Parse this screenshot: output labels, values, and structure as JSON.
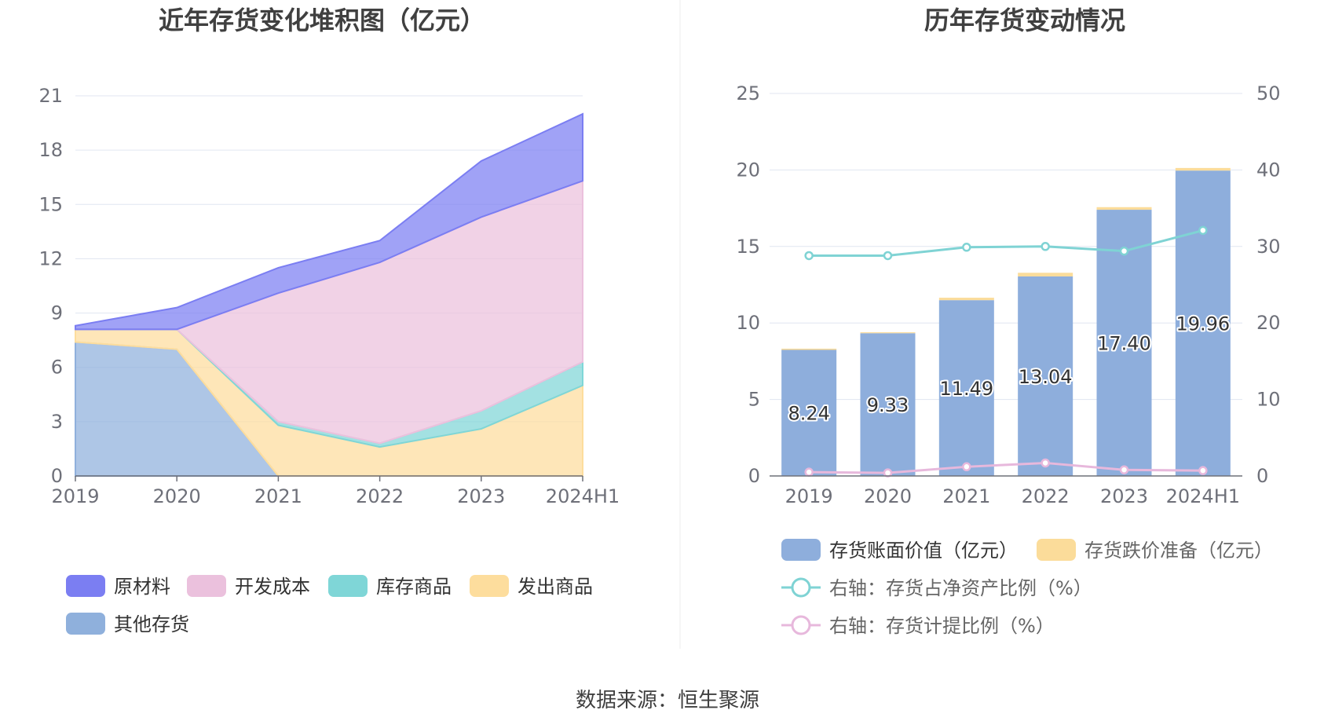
{
  "footer": {
    "source": "数据来源：恒生聚源"
  },
  "chart_data": [
    {
      "type": "area",
      "stacked": true,
      "title": "近年存货变化堆积图（亿元）",
      "categories": [
        "2019",
        "2020",
        "2021",
        "2022",
        "2023",
        "2024H1"
      ],
      "y_ticks": [
        "0",
        "3",
        "6",
        "9",
        "12",
        "15",
        "18",
        "21"
      ],
      "ylim": [
        0,
        21
      ],
      "grid": true,
      "legend_position": "bottom",
      "series": [
        {
          "name": "其他存货",
          "color": "#8fb0dc",
          "values": [
            7.4,
            7.0,
            0.0,
            0.0,
            0.0,
            0.0
          ]
        },
        {
          "name": "发出商品",
          "color": "#fddd9d",
          "values": [
            0.7,
            1.1,
            2.8,
            1.6,
            2.6,
            5.0
          ]
        },
        {
          "name": "库存商品",
          "color": "#7fd6d7",
          "values": [
            0.0,
            0.0,
            0.2,
            0.2,
            1.0,
            1.3
          ]
        },
        {
          "name": "开发成本",
          "color": "#ebc1dd",
          "values": [
            0.0,
            0.0,
            7.1,
            10.0,
            10.7,
            10.0
          ]
        },
        {
          "name": "原材料",
          "color": "#7b7ef2",
          "values": [
            0.2,
            1.2,
            1.4,
            1.2,
            3.1,
            3.7
          ]
        }
      ],
      "legend_order": [
        "原材料",
        "开发成本",
        "库存商品",
        "发出商品",
        "其他存货"
      ]
    },
    {
      "type": "bar+line",
      "title": "历年存货变动情况",
      "categories": [
        "2019",
        "2020",
        "2021",
        "2022",
        "2023",
        "2024H1"
      ],
      "y_left_ticks": [
        "0",
        "5",
        "10",
        "15",
        "20",
        "25"
      ],
      "y_right_ticks": [
        "0",
        "10",
        "20",
        "30",
        "40",
        "50"
      ],
      "ylim_left": [
        0,
        25
      ],
      "ylim_right": [
        0,
        50
      ],
      "grid": true,
      "legend_position": "bottom",
      "series": [
        {
          "name": "存货账面价值（亿元）",
          "type": "bar",
          "stack": "inv",
          "color": "#8eaedc",
          "values": [
            8.24,
            9.33,
            11.49,
            13.04,
            17.4,
            19.96
          ],
          "labels": [
            "8.24",
            "9.33",
            "11.49",
            "13.04",
            "17.40",
            "19.96"
          ]
        },
        {
          "name": "存货跌价准备（亿元）",
          "type": "bar",
          "stack": "inv",
          "color": "#fbdc9a",
          "values": [
            0.08,
            0.06,
            0.16,
            0.24,
            0.17,
            0.17
          ]
        },
        {
          "name": "右轴：存货占净资产比例（%）",
          "type": "line",
          "axis": "right",
          "color": "#7fd3d4",
          "values": [
            28.8,
            28.8,
            29.9,
            30.0,
            29.4,
            32.1
          ]
        },
        {
          "name": "右轴：存货计提比例（%）",
          "type": "line",
          "axis": "right",
          "color": "#e7b8dc",
          "values": [
            0.5,
            0.4,
            1.2,
            1.7,
            0.8,
            0.7
          ]
        }
      ]
    }
  ]
}
